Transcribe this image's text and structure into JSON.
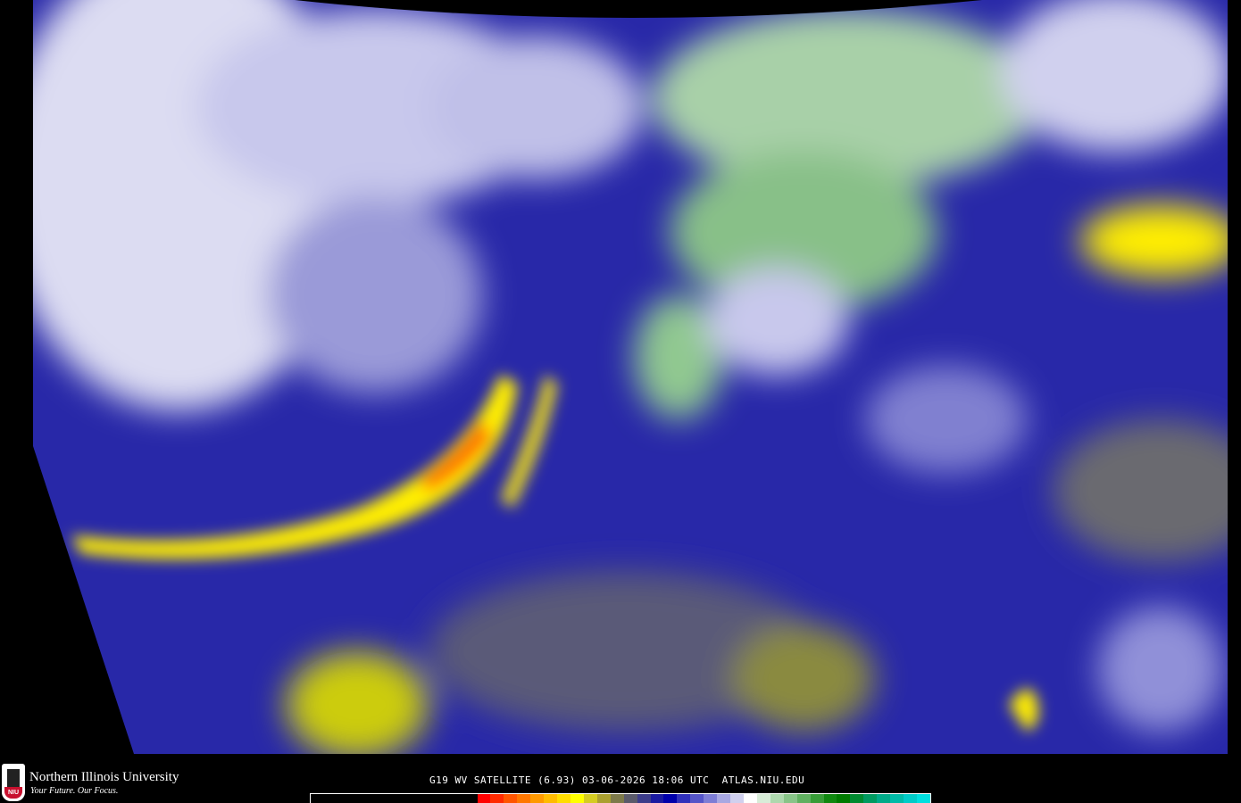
{
  "branding": {
    "university": "Northern Illinois University",
    "tagline": "Your Future. Our Focus.",
    "logo_text": "NIU"
  },
  "caption": "G19 WV SATELLITE (6.93) 03-06-2026 18:06 UTC  ATLAS.NIU.EDU",
  "colorbar": {
    "colors": [
      "#000000",
      "#ff0000",
      "#ff2a00",
      "#ff5500",
      "#ff7700",
      "#ff9900",
      "#ffbb00",
      "#ffdd00",
      "#ffff00",
      "#d4cc22",
      "#aaa030",
      "#7d7a4a",
      "#5a5a6a",
      "#3c3c8a",
      "#1a1aa0",
      "#0000aa",
      "#3030bb",
      "#5555c8",
      "#7d7dd5",
      "#a8a8e2",
      "#d0d0ee",
      "#ffffff",
      "#d8ecd8",
      "#aed8ae",
      "#88c488",
      "#60b060",
      "#389c38",
      "#108810",
      "#007a00",
      "#008a30",
      "#009a60",
      "#00aa88",
      "#00bba8",
      "#00ccc8",
      "#00e0e0"
    ]
  },
  "imagery_colors": {
    "dry": "#ffff00",
    "very_dry": "#ff4400",
    "mid": "#2020a8",
    "moist": "#e8e8f8",
    "cold_cloud": "#5aa85a"
  }
}
